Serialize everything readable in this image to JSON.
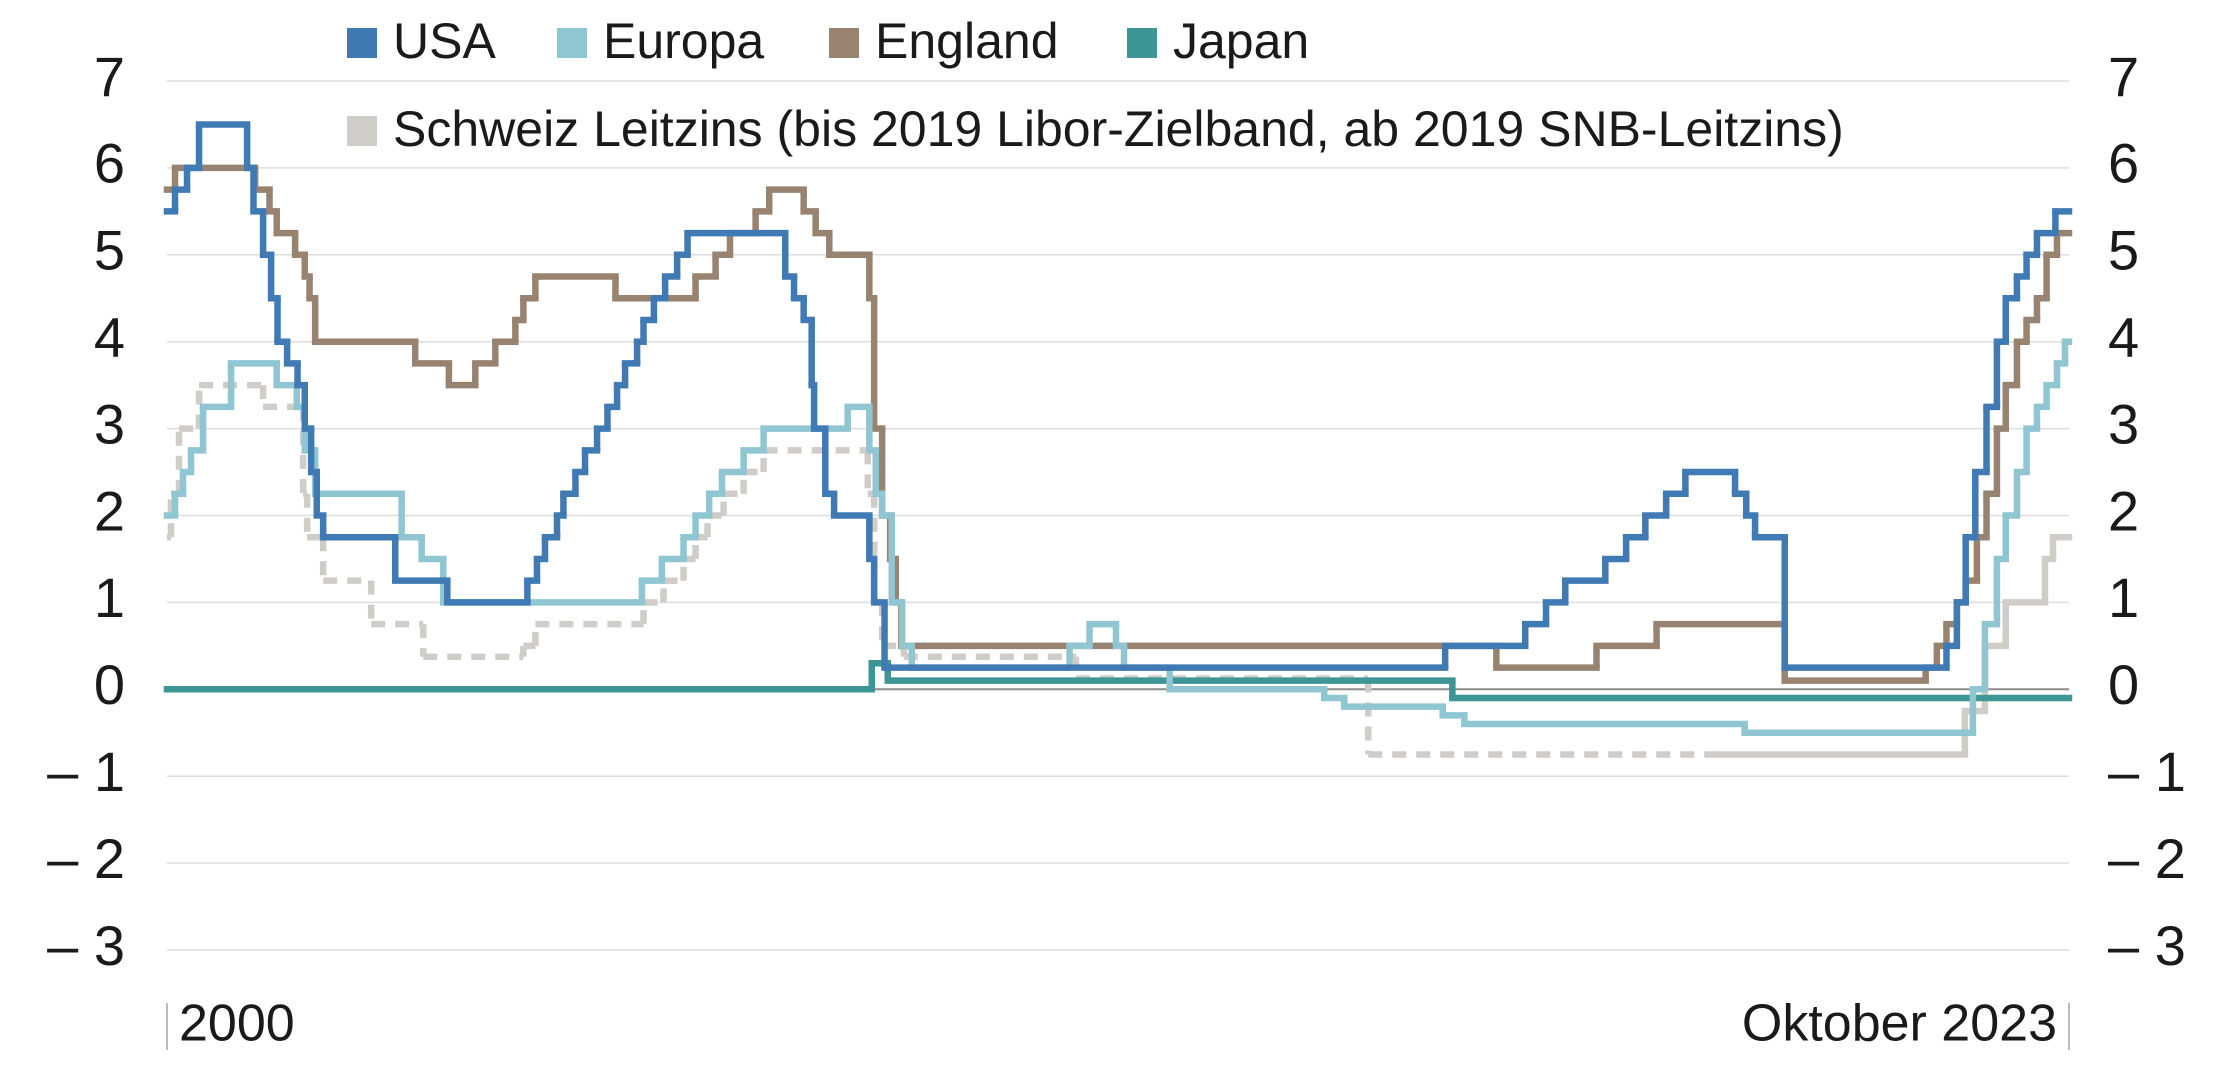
{
  "chart_data": {
    "type": "step-line",
    "xlim": [
      2000,
      2023.75
    ],
    "xticks": [
      {
        "value": 2000,
        "label": "2000"
      },
      {
        "value": 2023.75,
        "label": "Oktober 2023"
      }
    ],
    "ylim": [
      -3,
      7
    ],
    "yticks": [
      {
        "value": -3,
        "label": "– 3"
      },
      {
        "value": -2,
        "label": "– 2"
      },
      {
        "value": -1,
        "label": "– 1"
      },
      0,
      1,
      2,
      3,
      4,
      5,
      6,
      7
    ],
    "grid": true,
    "series": [
      {
        "name": "USA",
        "color": "#3f7ab5",
        "x": [
          2000,
          2000.1,
          2000.25,
          2000.4,
          2001.0,
          2001.08,
          2001.2,
          2001.3,
          2001.38,
          2001.5,
          2001.63,
          2001.72,
          2001.8,
          2001.87,
          2001.95,
          2002.85,
          2003.5,
          2004.5,
          2004.62,
          2004.72,
          2004.87,
          2004.95,
          2005.1,
          2005.22,
          2005.37,
          2005.5,
          2005.62,
          2005.72,
          2005.87,
          2005.95,
          2006.08,
          2006.22,
          2006.37,
          2006.5,
          2007.72,
          2007.83,
          2007.95,
          2008.05,
          2008.08,
          2008.22,
          2008.33,
          2008.77,
          2008.83,
          2008.96,
          2015.96,
          2016.96,
          2017.22,
          2017.46,
          2017.96,
          2018.22,
          2018.46,
          2018.72,
          2018.96,
          2019.58,
          2019.72,
          2019.83,
          2020.2,
          2022.22,
          2022.35,
          2022.46,
          2022.58,
          2022.72,
          2022.85,
          2022.96,
          2023.1,
          2023.22,
          2023.35,
          2023.58
        ],
        "values": [
          5.5,
          5.75,
          6.0,
          6.5,
          6.0,
          5.5,
          5.0,
          4.5,
          4.0,
          3.75,
          3.5,
          3.0,
          2.5,
          2.0,
          1.75,
          1.25,
          1.0,
          1.25,
          1.5,
          1.75,
          2.0,
          2.25,
          2.5,
          2.75,
          3.0,
          3.25,
          3.5,
          3.75,
          4.0,
          4.25,
          4.5,
          4.75,
          5.0,
          5.25,
          4.75,
          4.5,
          4.25,
          3.5,
          3.0,
          2.25,
          2.0,
          1.5,
          1.0,
          0.25,
          0.5,
          0.75,
          1.0,
          1.25,
          1.5,
          1.75,
          2.0,
          2.25,
          2.5,
          2.25,
          2.0,
          1.75,
          0.25,
          0.5,
          1.0,
          1.75,
          2.5,
          3.25,
          4.0,
          4.5,
          4.75,
          5.0,
          5.25,
          5.5
        ]
      },
      {
        "name": "Europa",
        "color": "#8fc6d2",
        "x": [
          2000,
          2000.1,
          2000.2,
          2000.3,
          2000.45,
          2000.8,
          2001.37,
          2001.62,
          2001.72,
          2001.85,
          2002.93,
          2003.18,
          2003.45,
          2005.93,
          2006.18,
          2006.45,
          2006.6,
          2006.77,
          2006.93,
          2007.2,
          2007.45,
          2008.5,
          2008.77,
          2008.85,
          2008.93,
          2009.05,
          2009.18,
          2009.3,
          2011.27,
          2011.52,
          2011.85,
          2011.95,
          2012.52,
          2014.45,
          2014.7,
          2015.93,
          2016.2,
          2019.7,
          2022.55,
          2022.7,
          2022.85,
          2022.96,
          2023.1,
          2023.22,
          2023.35,
          2023.47,
          2023.6,
          2023.7
        ],
        "values": [
          2.0,
          2.25,
          2.5,
          2.75,
          3.25,
          3.75,
          3.5,
          3.25,
          2.75,
          2.25,
          1.75,
          1.5,
          1.0,
          1.25,
          1.5,
          1.75,
          2.0,
          2.25,
          2.5,
          2.75,
          3.0,
          3.25,
          2.75,
          2.25,
          2.0,
          1.0,
          0.5,
          0.25,
          0.5,
          0.75,
          0.5,
          0.25,
          0.0,
          -0.1,
          -0.2,
          -0.3,
          -0.4,
          -0.5,
          0.0,
          0.75,
          1.5,
          2.0,
          2.5,
          3.0,
          3.25,
          3.5,
          3.75,
          4.0
        ]
      },
      {
        "name": "England",
        "color": "#978370",
        "x": [
          2000,
          2000.1,
          2001.1,
          2001.28,
          2001.37,
          2001.6,
          2001.72,
          2001.78,
          2001.85,
          2003.1,
          2003.52,
          2003.85,
          2004.1,
          2004.35,
          2004.45,
          2004.6,
          2005.6,
          2006.6,
          2006.85,
          2007.03,
          2007.35,
          2007.52,
          2007.95,
          2008.1,
          2008.27,
          2008.77,
          2008.83,
          2008.93,
          2009.03,
          2009.1,
          2009.17,
          2016.6,
          2017.85,
          2018.6,
          2020.2,
          2021.96,
          2022.1,
          2022.22,
          2022.35,
          2022.46,
          2022.6,
          2022.72,
          2022.85,
          2022.96,
          2023.1,
          2023.22,
          2023.35,
          2023.47,
          2023.6
        ],
        "values": [
          5.75,
          6.0,
          5.75,
          5.5,
          5.25,
          5.0,
          4.75,
          4.5,
          4.0,
          3.75,
          3.5,
          3.75,
          4.0,
          4.25,
          4.5,
          4.75,
          4.5,
          4.75,
          5.0,
          5.25,
          5.5,
          5.75,
          5.5,
          5.25,
          5.0,
          4.5,
          3.0,
          2.0,
          1.5,
          1.0,
          0.5,
          0.25,
          0.5,
          0.75,
          0.1,
          0.25,
          0.5,
          0.75,
          1.0,
          1.25,
          1.75,
          2.25,
          3.0,
          3.5,
          4.0,
          4.25,
          4.5,
          5.0,
          5.25
        ]
      },
      {
        "name": "Japan",
        "color": "#3d9595",
        "x": [
          2000,
          2008.8,
          2009.0,
          2016.05
        ],
        "values": [
          0,
          0.3,
          0.1,
          -0.1
        ]
      },
      {
        "name": "Schweiz Leitzins (bis 2019 Libor-Zielband, ab 2019 SNB-Leitzins)",
        "color": "#d0ccc7",
        "dashed_until": 2019.4,
        "x": [
          2000,
          2000.05,
          2000.15,
          2000.4,
          2001.2,
          2001.7,
          2001.75,
          2001.95,
          2002.55,
          2003.2,
          2004.45,
          2004.6,
          2005.95,
          2006.2,
          2006.45,
          2006.6,
          2006.75,
          2006.95,
          2007.2,
          2007.45,
          2008.75,
          2008.83,
          2008.93,
          2009.2,
          2011.35,
          2015.0,
          2022.45,
          2022.7,
          2022.96,
          2023.45,
          2023.55
        ],
        "values": [
          1.75,
          2.25,
          3.0,
          3.5,
          3.25,
          2.25,
          1.75,
          1.25,
          0.75,
          0.375,
          0.5,
          0.75,
          1.0,
          1.25,
          1.5,
          1.75,
          2.0,
          2.25,
          2.5,
          2.75,
          2.25,
          1.0,
          0.5,
          0.375,
          0.125,
          -0.75,
          -0.25,
          0.5,
          1.0,
          1.5,
          1.75
        ]
      }
    ]
  }
}
